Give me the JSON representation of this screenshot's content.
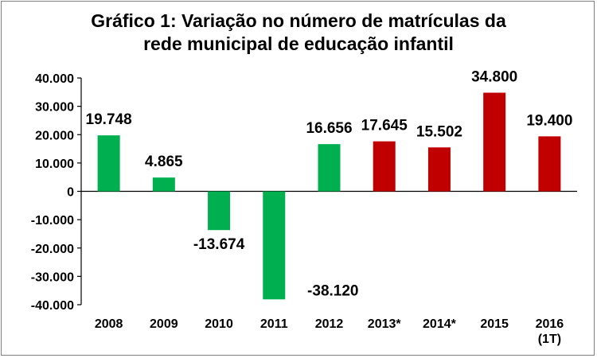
{
  "chart_data": {
    "type": "bar",
    "title_lines": [
      "Gráfico 1: Variação no número de matrículas da",
      "rede municipal de educação infantil"
    ],
    "categories": [
      [
        "2008"
      ],
      [
        "2009"
      ],
      [
        "2010"
      ],
      [
        "2011"
      ],
      [
        "2012"
      ],
      [
        "2013*"
      ],
      [
        "2014*"
      ],
      [
        "2015"
      ],
      [
        "2016",
        "(1T)"
      ]
    ],
    "values": [
      19748,
      4865,
      -13674,
      -38120,
      16656,
      17645,
      15502,
      34800,
      19400
    ],
    "value_labels": [
      "19.748",
      "4.865",
      "-13.674",
      "-38.120",
      "16.656",
      "17.645",
      "15.502",
      "34.800",
      "19.400"
    ],
    "bar_colors": [
      "#00b050",
      "#00b050",
      "#00b050",
      "#00b050",
      "#00b050",
      "#c00000",
      "#c00000",
      "#c00000",
      "#c00000"
    ],
    "ylim": [
      -40000,
      40000
    ],
    "y_ticks": [
      40000,
      30000,
      20000,
      10000,
      0,
      -10000,
      -20000,
      -30000,
      -40000
    ],
    "y_tick_labels": [
      "40.000",
      "30.000",
      "20.000",
      "10.000",
      "0",
      "-10.000",
      "-20.000",
      "-30.000",
      "-40.000"
    ],
    "xlabel": "",
    "ylabel": "",
    "grid": false,
    "legend": "none"
  }
}
